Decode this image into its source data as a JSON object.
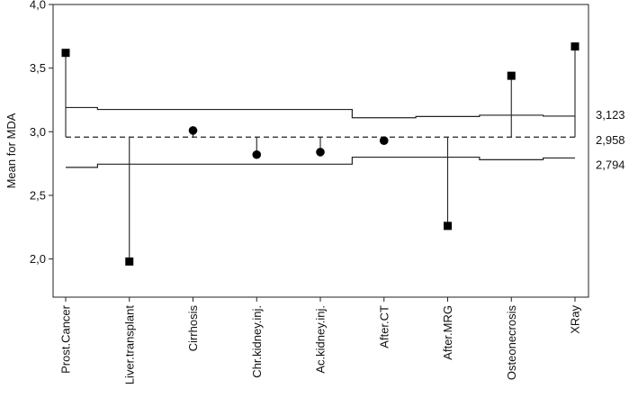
{
  "chart_data": {
    "type": "scatter",
    "ylabel": "Mean for MDA",
    "ylim": [
      1.7,
      4.0
    ],
    "yticks": [
      "2,0",
      "2,5",
      "3,0",
      "3,5",
      "4,0"
    ],
    "ytick_values": [
      2.0,
      2.5,
      3.0,
      3.5,
      4.0
    ],
    "categories": [
      "Prost.Cancer",
      "Liver.transplant",
      "Cirrhosis",
      "Chr.kidney.inj.",
      "Ac.kidney.inj.",
      "After.CT",
      "After.MRG",
      "Osteonecrosis",
      "XRay"
    ],
    "values": [
      3.62,
      1.98,
      3.01,
      2.82,
      2.84,
      2.93,
      2.26,
      3.44,
      3.67
    ],
    "markers": [
      "square",
      "square",
      "circle",
      "circle",
      "circle",
      "circle",
      "square",
      "square",
      "square"
    ],
    "center_line": 2.958,
    "upper_limits": [
      3.19,
      3.175,
      3.175,
      3.175,
      3.175,
      3.11,
      3.12,
      3.13,
      3.123
    ],
    "lower_limits": [
      2.72,
      2.745,
      2.745,
      2.745,
      2.745,
      2.8,
      2.8,
      2.78,
      2.794
    ],
    "reference_labels": {
      "upper": "3,123",
      "center": "2,958",
      "lower": "2,794"
    },
    "grid": false,
    "legend": "none"
  }
}
